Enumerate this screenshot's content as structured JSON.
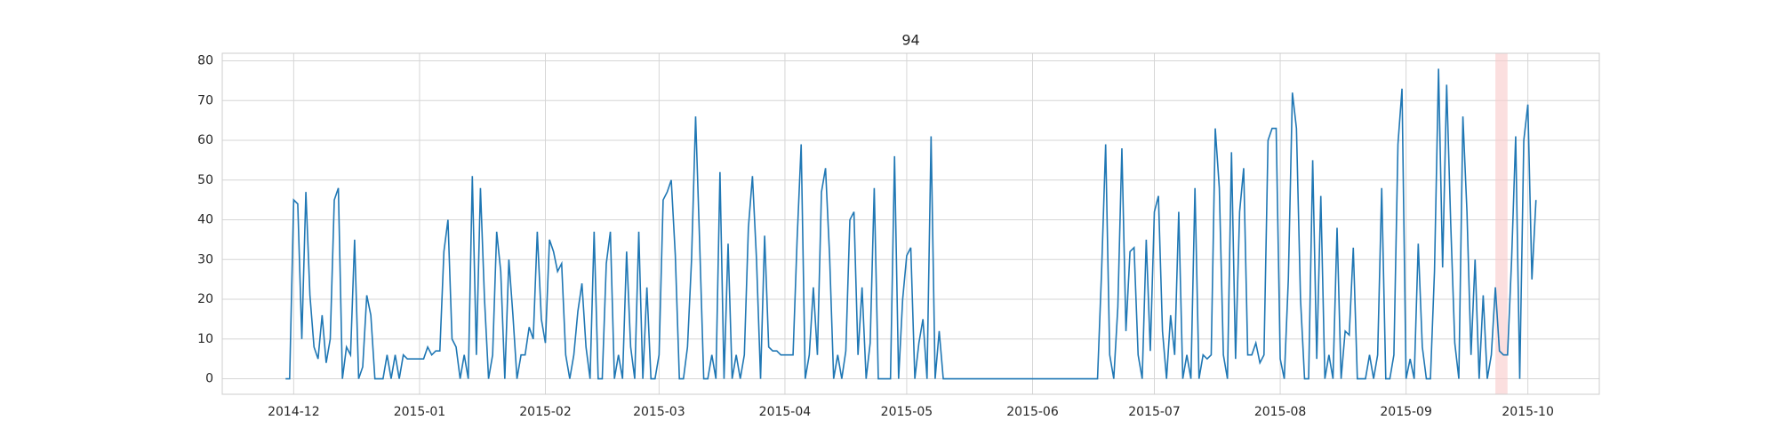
{
  "chart_data": {
    "type": "line",
    "title": "94",
    "color": "#1f77b4",
    "x": [
      -2,
      -1,
      0,
      1,
      2,
      3,
      4,
      5,
      6,
      7,
      8,
      9,
      10,
      11,
      12,
      13,
      14,
      15,
      16,
      17,
      18,
      19,
      20,
      21,
      22,
      23,
      24,
      25,
      26,
      27,
      28,
      29,
      30,
      31,
      32,
      33,
      34,
      35,
      36,
      37,
      38,
      39,
      40,
      41,
      42,
      43,
      44,
      45,
      46,
      47,
      48,
      49,
      50,
      51,
      52,
      53,
      54,
      55,
      56,
      57,
      58,
      59,
      60,
      61,
      62,
      63,
      64,
      65,
      66,
      67,
      68,
      69,
      70,
      71,
      72,
      73,
      74,
      75,
      76,
      77,
      78,
      79,
      80,
      81,
      82,
      83,
      84,
      85,
      86,
      87,
      88,
      89,
      90,
      91,
      92,
      93,
      94,
      95,
      96,
      97,
      98,
      99,
      100,
      101,
      102,
      103,
      104,
      105,
      106,
      107,
      108,
      109,
      110,
      111,
      112,
      113,
      114,
      115,
      116,
      117,
      118,
      119,
      120,
      121,
      122,
      123,
      124,
      125,
      126,
      127,
      128,
      129,
      130,
      131,
      132,
      133,
      134,
      135,
      136,
      137,
      138,
      139,
      140,
      141,
      142,
      143,
      144,
      145,
      146,
      147,
      148,
      149,
      150,
      151,
      152,
      153,
      154,
      155,
      156,
      157,
      158,
      159,
      160,
      161,
      162,
      163,
      164,
      165,
      166,
      167,
      168,
      169,
      170,
      171,
      172,
      173,
      174,
      175,
      176,
      177,
      178,
      179,
      180,
      181,
      182,
      183,
      184,
      185,
      186,
      187,
      188,
      189,
      190,
      191,
      192,
      193,
      194,
      195,
      196,
      197,
      198,
      199,
      200,
      201,
      202,
      203,
      204,
      205,
      206,
      207,
      208,
      209,
      210,
      211,
      212,
      213,
      214,
      215,
      216,
      217,
      218,
      219,
      220,
      221,
      222,
      223,
      224,
      225,
      226,
      227,
      228,
      229,
      230,
      231,
      232,
      233,
      234,
      235,
      236,
      237,
      238,
      239,
      240,
      241,
      242,
      243,
      244,
      245,
      246,
      247,
      248,
      249,
      250,
      251,
      252,
      253,
      254,
      255,
      256,
      257,
      258,
      259,
      260,
      261,
      262,
      263,
      264,
      265,
      266,
      267,
      268,
      269,
      270,
      271,
      272,
      273,
      274,
      275,
      276,
      277,
      278,
      279,
      280,
      281,
      282,
      283,
      284,
      285,
      286,
      287,
      288,
      289,
      290,
      291,
      292,
      293,
      294,
      295,
      296,
      297,
      298,
      299,
      300,
      301,
      302,
      303,
      304,
      305,
      306
    ],
    "values": [
      0,
      0,
      45,
      44,
      10,
      47,
      21,
      8,
      5,
      16,
      4,
      10,
      45,
      48,
      0,
      8,
      6,
      35,
      0,
      3,
      21,
      16,
      0,
      0,
      0,
      6,
      0,
      6,
      0,
      6,
      5,
      5,
      5,
      5,
      5,
      8,
      6,
      7,
      7,
      32,
      40,
      10,
      8,
      0,
      6,
      0,
      51,
      6,
      48,
      20,
      0,
      6,
      37,
      27,
      0,
      30,
      16,
      0,
      6,
      6,
      13,
      10,
      37,
      15,
      9,
      35,
      32,
      27,
      29,
      6,
      0,
      6,
      17,
      24,
      8,
      0,
      37,
      0,
      0,
      29,
      37,
      0,
      6,
      0,
      32,
      8,
      0,
      37,
      0,
      23,
      0,
      0,
      6,
      45,
      47,
      50,
      31,
      0,
      0,
      8,
      30,
      66,
      34,
      0,
      0,
      6,
      0,
      52,
      0,
      34,
      0,
      6,
      0,
      6,
      38,
      51,
      30,
      0,
      36,
      8,
      7,
      7,
      6,
      6,
      6,
      6,
      35,
      59,
      0,
      6,
      23,
      6,
      47,
      53,
      31,
      0,
      6,
      0,
      7,
      40,
      42,
      6,
      23,
      0,
      9,
      48,
      0,
      0,
      0,
      0,
      56,
      0,
      20,
      31,
      33,
      0,
      9,
      15,
      0,
      61,
      0,
      12,
      0,
      0,
      0,
      0,
      0,
      0,
      0,
      0,
      0,
      0,
      0,
      0,
      0,
      0,
      0,
      0,
      0,
      0,
      0,
      0,
      0,
      0,
      0,
      0,
      0,
      0,
      0,
      0,
      0,
      0,
      0,
      0,
      0,
      0,
      0,
      0,
      0,
      0,
      0,
      27,
      59,
      6,
      0,
      18,
      58,
      12,
      32,
      33,
      6,
      0,
      35,
      7,
      42,
      46,
      12,
      0,
      16,
      6,
      42,
      0,
      6,
      0,
      48,
      0,
      6,
      5,
      6,
      63,
      48,
      6,
      0,
      57,
      5,
      42,
      53,
      6,
      6,
      9,
      4,
      6,
      60,
      63,
      63,
      5,
      0,
      25,
      72,
      63,
      20,
      0,
      0,
      55,
      5,
      46,
      0,
      6,
      0,
      38,
      0,
      12,
      11,
      33,
      0,
      0,
      0,
      6,
      0,
      6,
      48,
      0,
      0,
      6,
      59,
      73,
      0,
      5,
      0,
      34,
      8,
      0,
      0,
      27,
      78,
      28,
      74,
      39,
      9,
      0,
      66,
      42,
      6,
      30,
      0,
      21,
      0,
      6,
      23,
      7,
      6,
      6,
      30,
      61,
      0,
      60,
      69,
      25,
      45
    ],
    "xlim": [
      -17.6,
      321.6
    ],
    "xticks": [
      {
        "value": 0,
        "label": "2014-12"
      },
      {
        "value": 31,
        "label": "2015-01"
      },
      {
        "value": 62,
        "label": "2015-02"
      },
      {
        "value": 90,
        "label": "2015-03"
      },
      {
        "value": 121,
        "label": "2015-04"
      },
      {
        "value": 151,
        "label": "2015-05"
      },
      {
        "value": 182,
        "label": "2015-06"
      },
      {
        "value": 212,
        "label": "2015-07"
      },
      {
        "value": 243,
        "label": "2015-08"
      },
      {
        "value": 274,
        "label": "2015-09"
      },
      {
        "value": 304,
        "label": "2015-10"
      }
    ],
    "ylim": [
      -3.9,
      81.9
    ],
    "yticks": [
      0,
      10,
      20,
      30,
      40,
      50,
      60,
      70,
      80
    ],
    "grid": true,
    "span": {
      "start": 296,
      "end": 299,
      "color": "#f8caca"
    }
  }
}
